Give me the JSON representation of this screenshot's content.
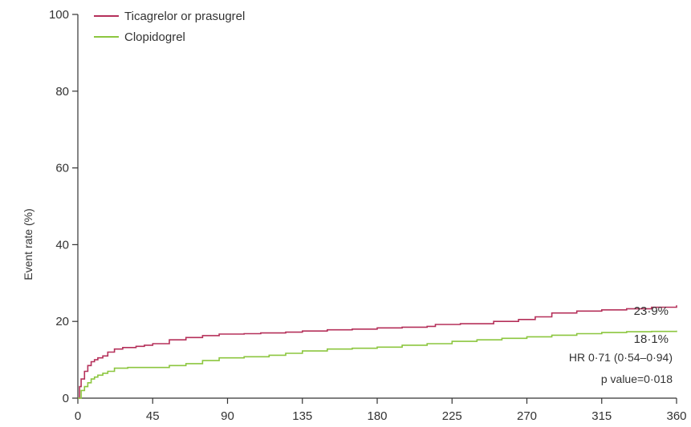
{
  "chart_data": {
    "type": "line",
    "ylabel": "Event rate (%)",
    "xlim": [
      0,
      360
    ],
    "ylim": [
      0,
      100
    ],
    "x_ticks": [
      0,
      45,
      90,
      135,
      180,
      225,
      270,
      315,
      360
    ],
    "x_tick_labels": [
      "0",
      "45",
      "90",
      "135",
      "180",
      "225",
      "270",
      "315",
      "360"
    ],
    "y_ticks": [
      0,
      20,
      40,
      60,
      80,
      100
    ],
    "y_tick_labels": [
      "0",
      "20",
      "40",
      "60",
      "80",
      "100"
    ],
    "grid": false,
    "legend_position": "top-left",
    "series": [
      {
        "name": "Ticagrelor or prasugrel",
        "color": "#b5305a",
        "end_label": "23·9%",
        "points": [
          [
            0,
            0
          ],
          [
            1,
            3
          ],
          [
            2,
            5
          ],
          [
            4,
            7
          ],
          [
            6,
            8.5
          ],
          [
            8,
            9.5
          ],
          [
            10,
            10
          ],
          [
            12,
            10.5
          ],
          [
            15,
            11
          ],
          [
            18,
            12
          ],
          [
            22,
            12.8
          ],
          [
            27,
            13.2
          ],
          [
            35,
            13.5
          ],
          [
            40,
            13.8
          ],
          [
            45,
            14.2
          ],
          [
            55,
            15.2
          ],
          [
            65,
            15.8
          ],
          [
            75,
            16.3
          ],
          [
            85,
            16.7
          ],
          [
            100,
            16.8
          ],
          [
            110,
            17
          ],
          [
            125,
            17.2
          ],
          [
            135,
            17.5
          ],
          [
            150,
            17.8
          ],
          [
            165,
            18
          ],
          [
            180,
            18.3
          ],
          [
            195,
            18.5
          ],
          [
            210,
            18.7
          ],
          [
            215,
            19.2
          ],
          [
            230,
            19.4
          ],
          [
            250,
            20
          ],
          [
            265,
            20.5
          ],
          [
            275,
            21.2
          ],
          [
            285,
            22.2
          ],
          [
            300,
            22.7
          ],
          [
            315,
            23
          ],
          [
            330,
            23.3
          ],
          [
            345,
            23.7
          ],
          [
            360,
            24.2
          ]
        ]
      },
      {
        "name": "Clopidogrel",
        "color": "#8cc63f",
        "end_label": "18·1%",
        "points": [
          [
            0,
            0
          ],
          [
            2,
            2
          ],
          [
            4,
            3
          ],
          [
            6,
            4
          ],
          [
            8,
            5
          ],
          [
            10,
            5.5
          ],
          [
            12,
            6
          ],
          [
            15,
            6.5
          ],
          [
            18,
            7
          ],
          [
            22,
            7.8
          ],
          [
            30,
            8
          ],
          [
            45,
            8
          ],
          [
            55,
            8.5
          ],
          [
            65,
            9
          ],
          [
            75,
            9.8
          ],
          [
            85,
            10.5
          ],
          [
            100,
            10.8
          ],
          [
            115,
            11.2
          ],
          [
            125,
            11.7
          ],
          [
            135,
            12.3
          ],
          [
            150,
            12.8
          ],
          [
            165,
            13
          ],
          [
            180,
            13.3
          ],
          [
            195,
            13.8
          ],
          [
            210,
            14.2
          ],
          [
            225,
            14.8
          ],
          [
            240,
            15.2
          ],
          [
            255,
            15.6
          ],
          [
            270,
            16
          ],
          [
            285,
            16.4
          ],
          [
            300,
            16.8
          ],
          [
            315,
            17.1
          ],
          [
            330,
            17.3
          ],
          [
            345,
            17.4
          ],
          [
            360,
            17.6
          ]
        ]
      }
    ],
    "annotations": {
      "hr": "HR 0·71 (0·54–0·94)",
      "p": "p value=0·018"
    }
  }
}
